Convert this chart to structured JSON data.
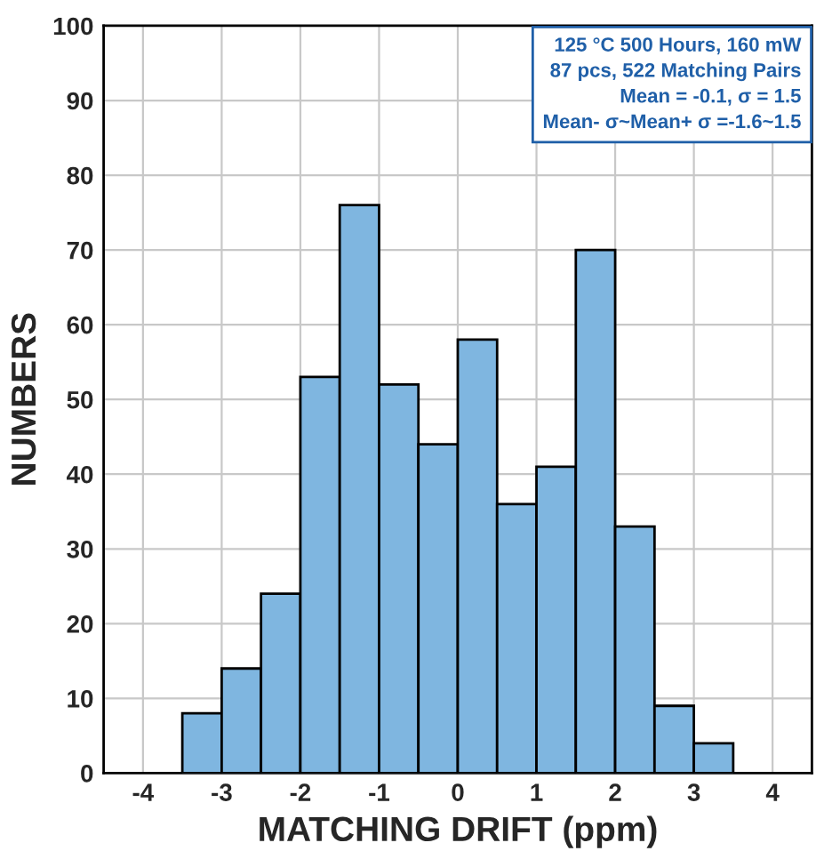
{
  "chart_data": {
    "type": "histogram",
    "xlabel": "MATCHING DRIFT (ppm)",
    "ylabel": "NUMBERS",
    "bins": [
      -3.5,
      -3,
      -2.5,
      -2,
      -1.5,
      -1,
      -0.5,
      0,
      0.5,
      1,
      1.5,
      2,
      2.5,
      3,
      3.5
    ],
    "values": [
      8,
      14,
      24,
      53,
      76,
      52,
      44,
      58,
      36,
      41,
      70,
      33,
      9,
      4
    ],
    "color": "#7fb6e0",
    "xlim": [
      -4.5,
      4.5
    ],
    "xticks": [
      -4,
      -3,
      -2,
      -1,
      0,
      1,
      2,
      3,
      4
    ],
    "ylim": [
      0,
      100
    ],
    "yticks": [
      0,
      10,
      20,
      30,
      40,
      50,
      60,
      70,
      80,
      90,
      100
    ],
    "grid": true,
    "annotations": [
      "125 °C 500 Hours, 160 mW\n87 pcs, 522 Matching Pairs\nMean = -0.1, σ = 1.5\nMean- σ~Mean+ σ =-1.6~1.5"
    ]
  }
}
